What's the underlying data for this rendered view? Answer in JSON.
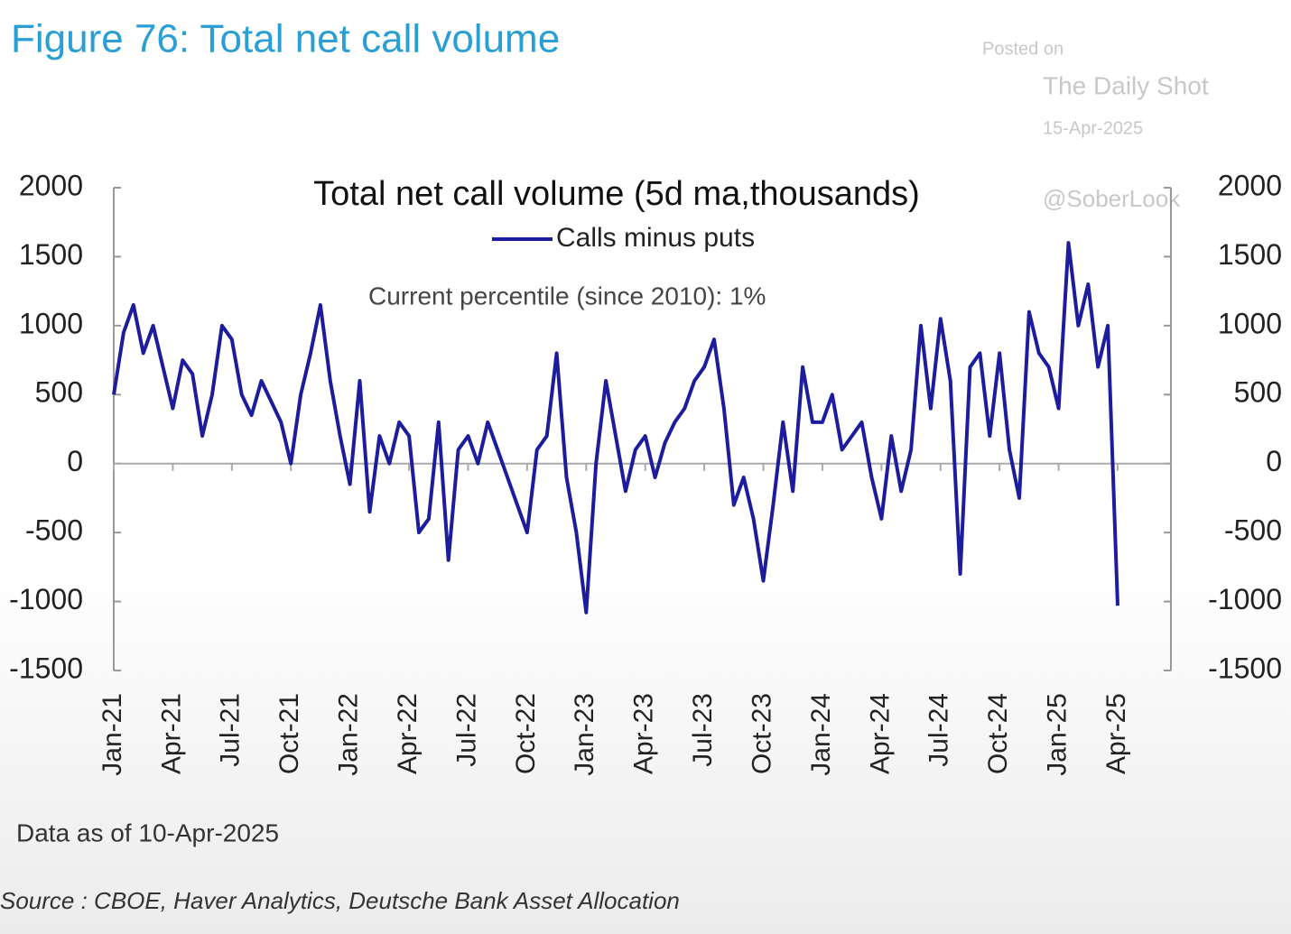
{
  "chart_data": {
    "type": "line",
    "title": "Figure 76: Total net call volume",
    "chart_title": "Total net call volume (5d ma,thousands)",
    "annotation": "Current percentile (since 2010): 1%",
    "watermark": [
      "Posted on",
      "The Daily Shot",
      "15-Apr-2025",
      "@SoberLook"
    ],
    "footnote": "Data as of 10-Apr-2025",
    "source": "Source : CBOE, Haver Analytics, Deutsche Bank Asset Allocation",
    "categories": [
      "Jan-21",
      null,
      null,
      null,
      null,
      null,
      "Apr-21",
      null,
      null,
      null,
      null,
      null,
      "Jul-21",
      null,
      null,
      null,
      null,
      null,
      "Oct-21",
      null,
      null,
      null,
      null,
      null,
      "Jan-22",
      null,
      null,
      null,
      null,
      null,
      "Apr-22",
      null,
      null,
      null,
      null,
      null,
      "Jul-22",
      null,
      null,
      null,
      null,
      null,
      "Oct-22",
      null,
      null,
      null,
      null,
      null,
      "Jan-23",
      null,
      null,
      null,
      null,
      null,
      "Apr-23",
      null,
      null,
      null,
      null,
      null,
      "Jul-23",
      null,
      null,
      null,
      null,
      null,
      "Oct-23",
      null,
      null,
      null,
      null,
      null,
      "Jan-24",
      null,
      null,
      null,
      null,
      null,
      "Apr-24",
      null,
      null,
      null,
      null,
      null,
      "Jul-24",
      null,
      null,
      null,
      null,
      null,
      "Oct-24",
      null,
      null,
      null,
      null,
      null,
      "Jan-25",
      null,
      null,
      null,
      null,
      null,
      "Apr-25"
    ],
    "series": [
      {
        "name": "Calls minus puts",
        "color": "#1c1c9c",
        "values": [
          500,
          950,
          1150,
          800,
          1000,
          700,
          400,
          750,
          650,
          200,
          500,
          1000,
          900,
          500,
          350,
          600,
          450,
          300,
          0,
          500,
          800,
          1150,
          600,
          200,
          -150,
          600,
          -350,
          200,
          0,
          300,
          200,
          -500,
          -400,
          300,
          -700,
          100,
          200,
          0,
          300,
          100,
          -100,
          -300,
          -500,
          100,
          200,
          800,
          -100,
          -500,
          -1080,
          0,
          600,
          200,
          -200,
          100,
          200,
          -100,
          150,
          300,
          400,
          600,
          700,
          900,
          400,
          -300,
          -100,
          -400,
          -850,
          -300,
          300,
          -200,
          700,
          300,
          300,
          500,
          100,
          200,
          300,
          -100,
          -400,
          200,
          -200,
          100,
          1000,
          400,
          1050,
          600,
          -800,
          700,
          800,
          200,
          800,
          100,
          -250,
          1100,
          800,
          700,
          400,
          1600,
          1000,
          1300,
          700,
          1000,
          -1030
        ]
      }
    ],
    "ylim": [
      -1500,
      2000
    ],
    "yticks": [
      -1500,
      -1000,
      -500,
      0,
      500,
      1000,
      1500,
      2000
    ],
    "y2lim": [
      -1500,
      2000
    ],
    "y2ticks": [
      -1500,
      -1000,
      -500,
      0,
      500,
      1000,
      1500,
      2000
    ],
    "zero_line": true
  }
}
